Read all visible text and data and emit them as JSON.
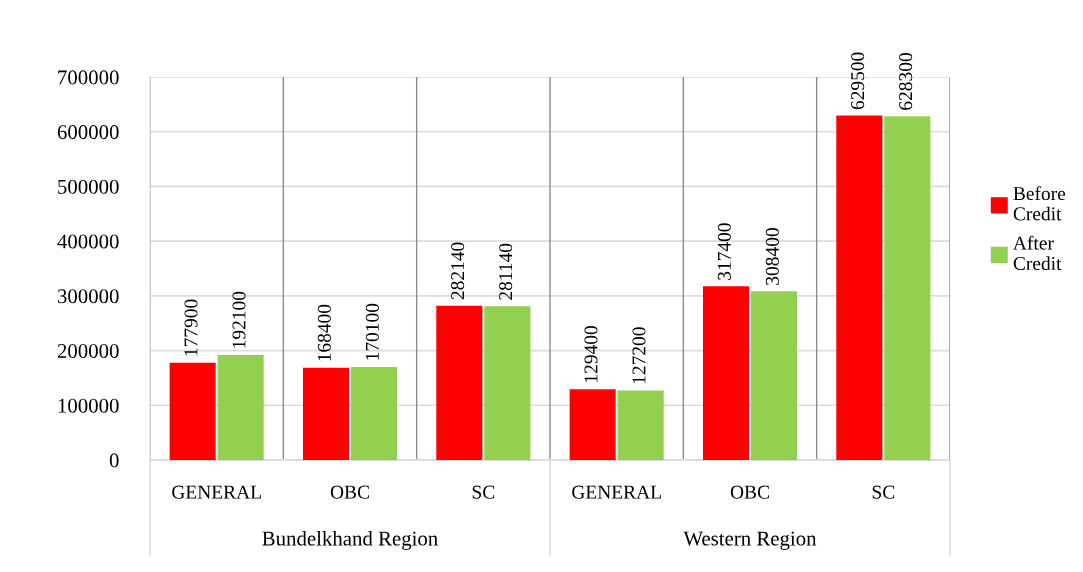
{
  "chart_data": {
    "type": "bar",
    "categories": [
      "GENERAL",
      "OBC",
      "SC",
      "GENERAL",
      "OBC",
      "SC"
    ],
    "series": [
      {
        "name": "Before Credit",
        "color": "#ff0000",
        "values": [
          177900,
          168400,
          282140,
          129400,
          317400,
          629500
        ]
      },
      {
        "name": "After Credit",
        "color": "#92d050",
        "values": [
          192100,
          170100,
          281140,
          127200,
          308400,
          628300
        ]
      }
    ],
    "annotations": [
      "Bundelkhand Region",
      "Western Region"
    ],
    "ylim": [
      0,
      700000
    ],
    "yticks": [
      0,
      100000,
      200000,
      300000,
      400000,
      500000,
      600000,
      700000
    ],
    "grid": "y",
    "legend": "right",
    "data_labels": true
  }
}
